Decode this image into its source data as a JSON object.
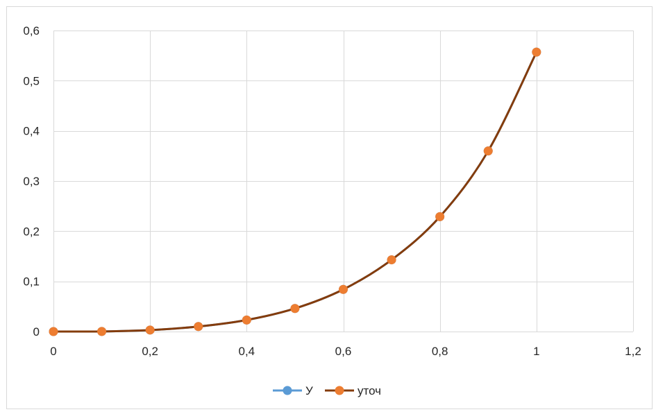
{
  "chart_data": {
    "type": "scatter",
    "title": "",
    "xlabel": "",
    "ylabel": "",
    "xlim": [
      0,
      1.2
    ],
    "ylim": [
      0,
      0.6
    ],
    "x_ticks": [
      "0",
      "0,2",
      "0,4",
      "0,6",
      "0,8",
      "1",
      "1,2"
    ],
    "y_ticks": [
      "0",
      "0,1",
      "0,2",
      "0,3",
      "0,4",
      "0,5",
      "0,6"
    ],
    "x_tick_values": [
      0,
      0.2,
      0.4,
      0.6,
      0.8,
      1.0,
      1.2
    ],
    "y_tick_values": [
      0,
      0.1,
      0.2,
      0.3,
      0.4,
      0.5,
      0.6
    ],
    "grid": true,
    "smooth": true,
    "legend_position": "bottom",
    "series": [
      {
        "name": "У",
        "line_color": "#5b9bd5",
        "marker_color": "#5b9bd5",
        "x": [
          0,
          0.1,
          0.2,
          0.3,
          0.4,
          0.5,
          0.6,
          0.7,
          0.8,
          0.9,
          1.0
        ],
        "y": [
          0,
          0.0002,
          0.003,
          0.01,
          0.023,
          0.046,
          0.084,
          0.143,
          0.229,
          0.36,
          0.557
        ]
      },
      {
        "name": "уточ",
        "line_color": "#843c0c",
        "marker_color": "#ed7d31",
        "x": [
          0,
          0.1,
          0.2,
          0.3,
          0.4,
          0.5,
          0.6,
          0.7,
          0.8,
          0.9,
          1.0
        ],
        "y": [
          0,
          0.0002,
          0.003,
          0.01,
          0.023,
          0.046,
          0.084,
          0.143,
          0.229,
          0.36,
          0.557
        ]
      }
    ]
  }
}
